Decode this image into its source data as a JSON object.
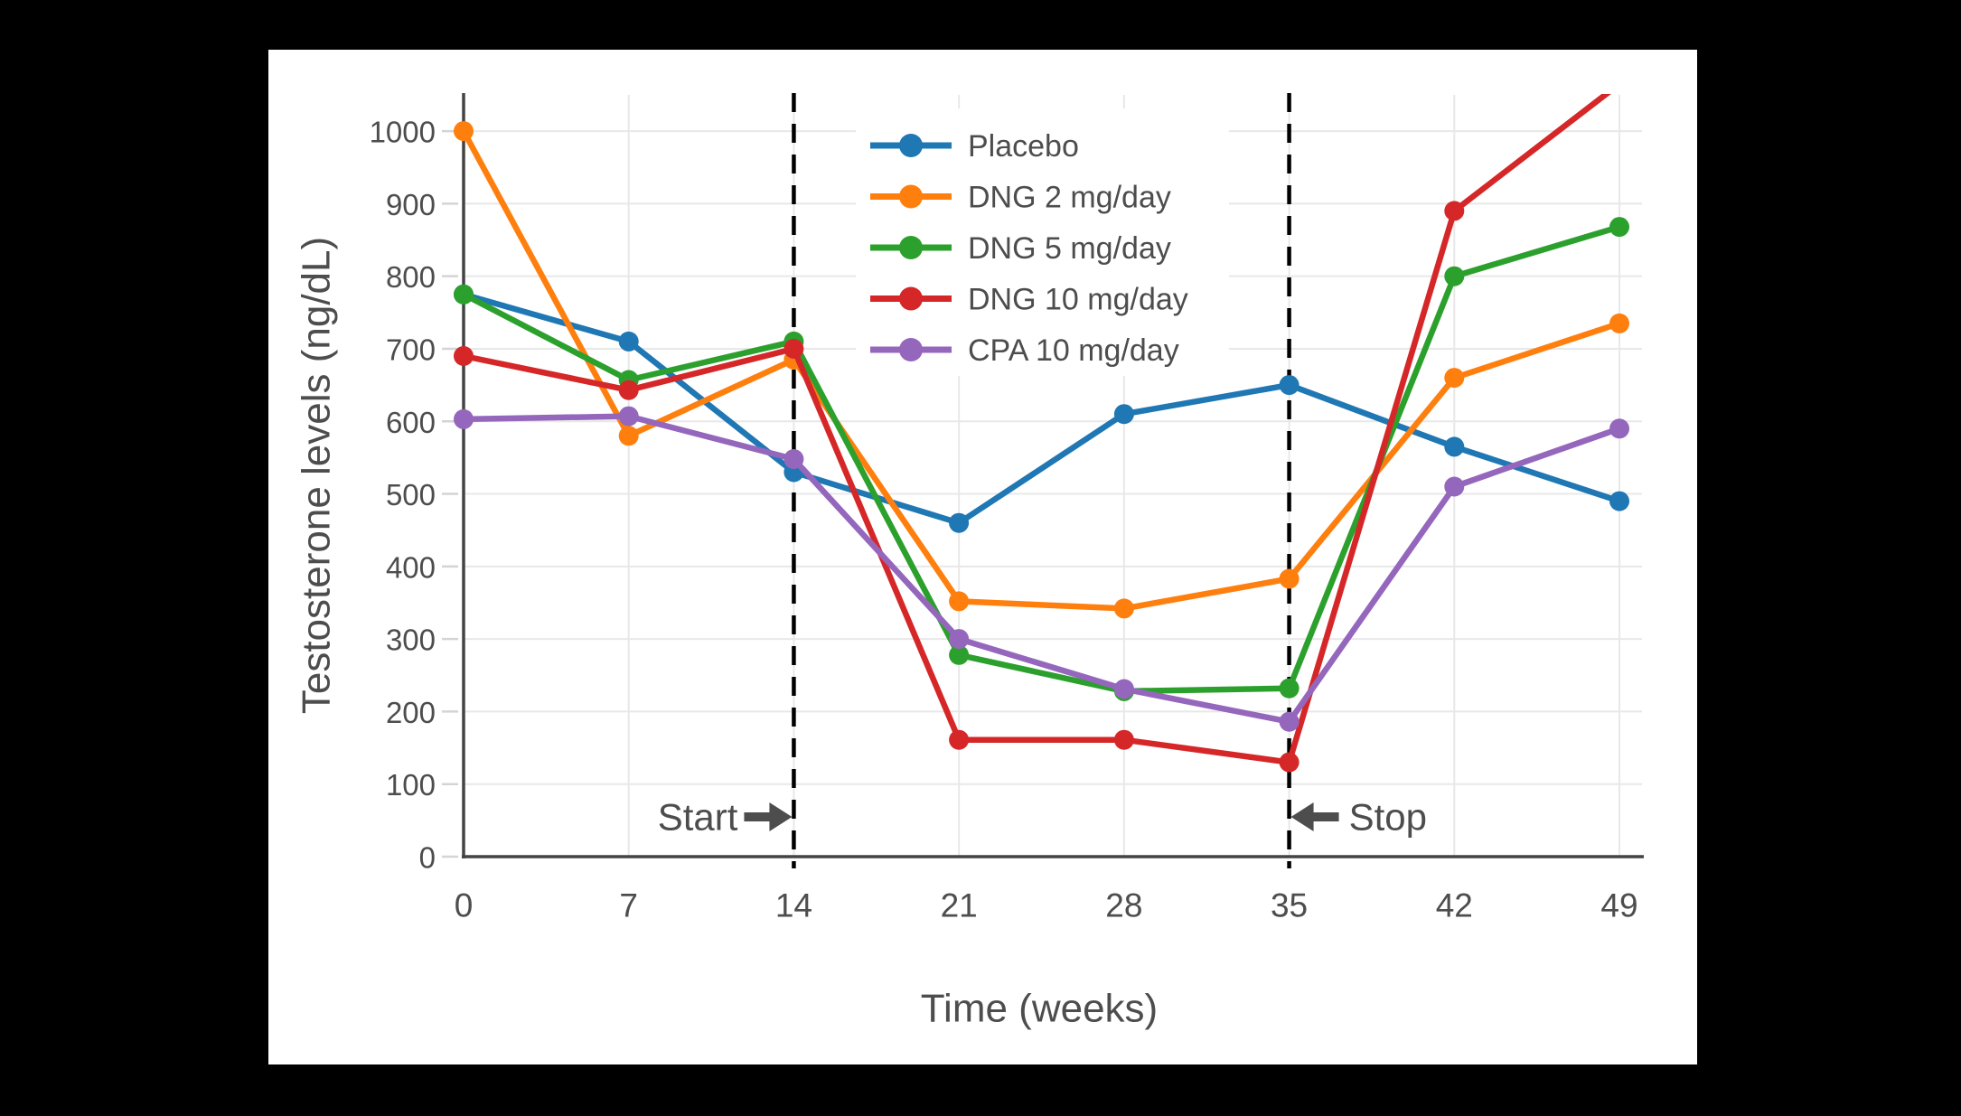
{
  "chart_data": {
    "type": "line",
    "title": "",
    "xlabel": "Time (weeks)",
    "ylabel": "Testosterone levels (ng/dL)",
    "x": [
      0,
      7,
      14,
      21,
      28,
      35,
      42,
      49
    ],
    "x_ticks": [
      0,
      7,
      14,
      21,
      28,
      35,
      42,
      49
    ],
    "y_ticks": [
      0,
      100,
      200,
      300,
      400,
      500,
      600,
      700,
      800,
      900,
      1000
    ],
    "xlim": [
      0,
      50
    ],
    "ylim": [
      0,
      1050
    ],
    "grid": true,
    "legend_position": "inside upper right",
    "series": [
      {
        "name": "Placebo",
        "color": "#1f77b4",
        "values": [
          775,
          710,
          530,
          460,
          610,
          650,
          565,
          490
        ]
      },
      {
        "name": "DNG 2 mg/day",
        "color": "#ff7f0e",
        "values": [
          1000,
          580,
          685,
          352,
          342,
          383,
          660,
          735
        ]
      },
      {
        "name": "DNG 5 mg/day",
        "color": "#2ca02c",
        "values": [
          775,
          657,
          710,
          278,
          228,
          232,
          800,
          868
        ]
      },
      {
        "name": "DNG 10 mg/day",
        "color": "#d62728",
        "values": [
          690,
          643,
          700,
          161,
          161,
          130,
          890,
          1065
        ]
      },
      {
        "name": "CPA 10 mg/day",
        "color": "#9467bd",
        "values": [
          603,
          607,
          548,
          300,
          231,
          186,
          510,
          590
        ]
      }
    ],
    "annotations": [
      {
        "label": "Start",
        "week": 14,
        "direction": "right"
      },
      {
        "label": "Stop",
        "week": 35,
        "direction": "left"
      }
    ],
    "style": {
      "background": "#000000",
      "panel": "#ffffff",
      "gridline": "#e8e8e8",
      "tick_mark": "#d4d4d4",
      "spine": "#444444",
      "dashed_line": "#000000",
      "text": "#4d4d4d"
    }
  }
}
